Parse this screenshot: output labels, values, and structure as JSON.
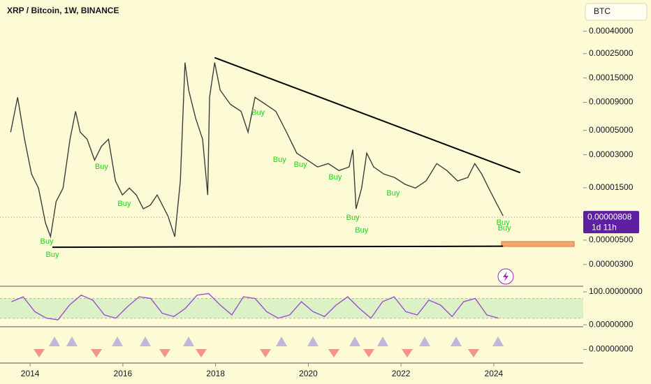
{
  "chart_data": [
    {
      "type": "line",
      "title": "XRP / Bitcoin, 1W, BINANCE",
      "currency": "BTC",
      "log_scale": true,
      "xlim": [
        2013.35,
        2025.93
      ],
      "ylim": [
        1.9e-06,
        0.00077
      ],
      "xticks": [
        2014,
        2016,
        2018,
        2020,
        2022,
        2024
      ],
      "yticks": [
        {
          "value": 0.0004,
          "label": "0.00040000"
        },
        {
          "value": 0.00025,
          "label": "0.00025000"
        },
        {
          "value": 0.00015,
          "label": "0.00015000"
        },
        {
          "value": 9e-05,
          "label": "0.00009000"
        },
        {
          "value": 5e-05,
          "label": "0.00005000"
        },
        {
          "value": 3e-05,
          "label": "0.00003000"
        },
        {
          "value": 1.5e-05,
          "label": "0.00001500"
        },
        {
          "value": 5e-06,
          "label": "0.00000500"
        },
        {
          "value": 3e-06,
          "label": "0.00000300"
        }
      ],
      "color": "#3d3d3d",
      "x": [
        2013.58,
        2013.73,
        2013.88,
        2014.03,
        2014.18,
        2014.33,
        2014.44,
        2014.56,
        2014.71,
        2014.86,
        2014.98,
        2015.08,
        2015.23,
        2015.39,
        2015.54,
        2015.69,
        2015.84,
        2015.99,
        2016.14,
        2016.29,
        2016.44,
        2016.59,
        2016.74,
        2016.97,
        2017.12,
        2017.24,
        2017.34,
        2017.42,
        2017.57,
        2017.72,
        2017.83,
        2017.87,
        2017.98,
        2018.1,
        2018.32,
        2018.55,
        2018.7,
        2018.85,
        2019.08,
        2019.3,
        2019.53,
        2019.75,
        2019.98,
        2020.2,
        2020.43,
        2020.66,
        2020.88,
        2020.96,
        2021.03,
        2021.15,
        2021.26,
        2021.41,
        2021.63,
        2021.86,
        2022.09,
        2022.31,
        2022.54,
        2022.77,
        2022.99,
        2023.22,
        2023.44,
        2023.59,
        2023.74,
        2023.89,
        2024.04,
        2024.2
      ],
      "values": [
        4.81e-05,
        0.0001,
        4.15e-05,
        2e-05,
        1.49e-05,
        7.19e-06,
        5.37e-06,
        1.12e-05,
        1.49e-05,
        4.15e-05,
        7.45e-05,
        4.81e-05,
        4.15e-05,
        2.68e-05,
        3.59e-05,
        4.15e-05,
        1.73e-05,
        1.29e-05,
        1.49e-05,
        1.29e-05,
        9.64e-06,
        1.04e-05,
        1.29e-05,
        8.33e-06,
        5.37e-06,
        1.73e-05,
        0.000207,
        0.000116,
        6.44e-05,
        4.15e-05,
        1.29e-05,
        0.0001,
        0.000207,
        0.000116,
        8.62e-05,
        7.45e-05,
        4.81e-05,
        0.0001,
        8.62e-05,
        7.45e-05,
        4.81e-05,
        3.1e-05,
        2.68e-05,
        2.32e-05,
        2.49e-05,
        2.15e-05,
        2.32e-05,
        3.34e-05,
        9.64e-06,
        1.49e-05,
        3.1e-05,
        2.32e-05,
        2e-05,
        1.86e-05,
        1.61e-05,
        1.49e-05,
        1.73e-05,
        2.49e-05,
        2.15e-05,
        1.73e-05,
        1.86e-05,
        2.49e-05,
        2e-05,
        1.49e-05,
        1.12e-05,
        8.33e-06
      ],
      "last_price": {
        "value": 8.08e-06,
        "label": "0.00000808"
      },
      "countdown": "1d 11h",
      "trendlines": [
        {
          "x": [
            2017.98,
            2024.57
          ],
          "values": [
            0.00023,
            2.06e-05
          ]
        },
        {
          "x": [
            2014.48,
            2024.2
          ],
          "values": [
            4.31e-06,
            4.4e-06
          ]
        }
      ],
      "annotations": [
        {
          "text": "Buy",
          "x": 2014.36,
          "value": 4.85e-06
        },
        {
          "text": "Buy",
          "x": 2014.48,
          "value": 3.67e-06
        },
        {
          "text": "Buy",
          "x": 2015.54,
          "value": 2.32e-05
        },
        {
          "text": "Buy",
          "x": 2016.03,
          "value": 1.07e-05
        },
        {
          "text": "Buy",
          "x": 2018.92,
          "value": 7.24e-05
        },
        {
          "text": "Buy",
          "x": 2019.38,
          "value": 2.68e-05
        },
        {
          "text": "Buy",
          "x": 2019.83,
          "value": 2.42e-05
        },
        {
          "text": "Buy",
          "x": 2020.58,
          "value": 1.86e-05
        },
        {
          "text": "Buy",
          "x": 2020.96,
          "value": 7.98e-06
        },
        {
          "text": "Buy",
          "x": 2021.15,
          "value": 6.12e-06
        },
        {
          "text": "Buy",
          "x": 2021.83,
          "value": 1.33e-05
        },
        {
          "text": "Buy",
          "x": 2024.2,
          "value": 7.19e-06
        },
        {
          "text": "Buy",
          "x": 2024.23,
          "value": 6.39e-06
        }
      ]
    },
    {
      "type": "line",
      "xlim": [
        2013.35,
        2025.93
      ],
      "ylim": [
        -6,
        117
      ],
      "yticks": [
        {
          "value": 100,
          "label": "100.00000000"
        },
        {
          "value": 0,
          "label": "0.00000000"
        }
      ],
      "bands": [
        20,
        80
      ],
      "color": "#9c4fd3",
      "x": [
        2013.6,
        2013.85,
        2014.1,
        2014.35,
        2014.6,
        2014.85,
        2015.1,
        2015.35,
        2015.6,
        2015.85,
        2016.1,
        2016.35,
        2016.6,
        2016.85,
        2017.1,
        2017.35,
        2017.6,
        2017.85,
        2018.1,
        2018.35,
        2018.6,
        2018.85,
        2019.1,
        2019.35,
        2019.6,
        2019.85,
        2020.1,
        2020.35,
        2020.6,
        2020.85,
        2021.1,
        2021.35,
        2021.6,
        2021.85,
        2022.1,
        2022.35,
        2022.6,
        2022.85,
        2023.1,
        2023.35,
        2023.6,
        2023.85,
        2024.1
      ],
      "values": [
        70,
        85,
        40,
        20,
        15,
        60,
        90,
        75,
        30,
        20,
        55,
        85,
        80,
        35,
        25,
        50,
        90,
        95,
        60,
        30,
        85,
        80,
        40,
        20,
        30,
        70,
        40,
        25,
        60,
        85,
        50,
        20,
        70,
        85,
        40,
        30,
        75,
        60,
        25,
        70,
        80,
        30,
        20
      ]
    },
    {
      "type": "line",
      "xlim": [
        2013.35,
        2025.93
      ],
      "ylim": [
        -0.6,
        1
      ],
      "yticks": [
        {
          "value": 0,
          "label": "0.00000000"
        }
      ]
    }
  ]
}
